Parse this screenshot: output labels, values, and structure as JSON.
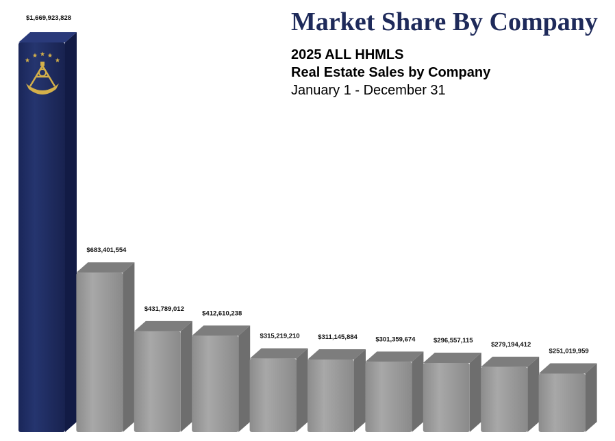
{
  "header": {
    "title": "Market Share By Company",
    "subtitle_line1": "2025 ALL HHMLS",
    "subtitle_line2": "Real Estate Sales by Company",
    "subtitle_line3": "January 1 - December 31"
  },
  "chart_data": {
    "type": "bar",
    "title": "Market Share By Company",
    "subtitle": "2025 ALL HHMLS Real Estate Sales by Company January 1 - December 31",
    "categories": [
      "",
      "",
      "",
      "",
      "",
      "",
      "",
      "",
      "",
      ""
    ],
    "values": [
      1669923828,
      683401554,
      431789012,
      412610238,
      315219210,
      311145884,
      301359674,
      296557115,
      279194412,
      251019959
    ],
    "value_labels": [
      "$1,669,923,828",
      "$683,401,554",
      "$431,789,012",
      "$412,610,238",
      "$315,219,210",
      "$311,145,884",
      "$301,359,674",
      "$296,557,115",
      "$279,194,412",
      "$251,019,959"
    ],
    "xlabel": "",
    "ylabel": "",
    "ylim": [
      0,
      1750000000
    ],
    "grid": false,
    "legend": "none",
    "highlight_index": 0,
    "colors": {
      "highlight_front": "#1c2960",
      "highlight_side": "#121b45",
      "highlight_top": "#2a3a7a",
      "bar_front": "#9a9a9a",
      "bar_side": "#6e6e6e",
      "bar_top": "#7d7d7d",
      "logo_gold": "#d4b04a"
    },
    "logo_icon": "sextant-stars-icon"
  }
}
